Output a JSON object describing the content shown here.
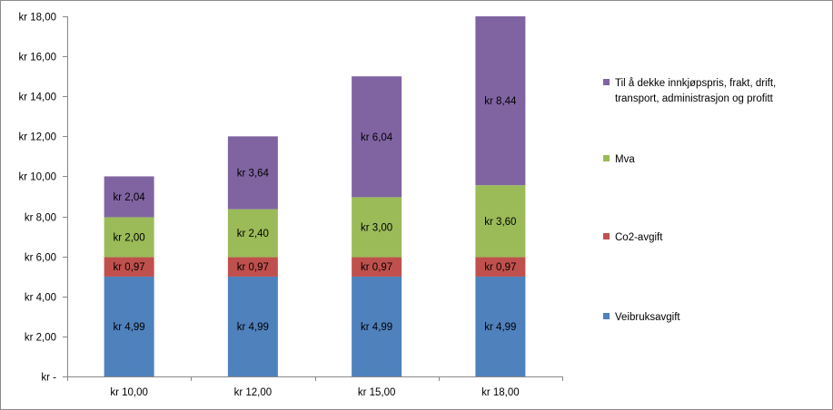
{
  "chart_data": {
    "type": "bar",
    "stacked": true,
    "categories": [
      "kr 10,00",
      "kr 12,00",
      "kr 15,00",
      "kr 18,00"
    ],
    "series": [
      {
        "name": "Veibruksavgift",
        "color": "#4F81BD",
        "values": [
          4.99,
          4.99,
          4.99,
          4.99
        ],
        "labels": [
          "kr 4,99",
          "kr 4,99",
          "kr 4,99",
          "kr 4,99"
        ]
      },
      {
        "name": "Co2-avgift",
        "color": "#C0504D",
        "values": [
          0.97,
          0.97,
          0.97,
          0.97
        ],
        "labels": [
          "kr 0,97",
          "kr 0,97",
          "kr 0,97",
          "kr 0,97"
        ]
      },
      {
        "name": "Mva",
        "color": "#9BBB59",
        "values": [
          2.0,
          2.4,
          3.0,
          3.6
        ],
        "labels": [
          "kr 2,00",
          "kr 2,40",
          "kr 3,00",
          "kr 3,60"
        ]
      },
      {
        "name": "Til å dekke innkjøpspris, frakt, drift, transport, administrasjon og profitt",
        "name_lines": [
          "Til å dekke innkjøpspris, frakt, drift,",
          "transport, administrasjon og profitt"
        ],
        "color": "#8064A2",
        "values": [
          2.04,
          3.64,
          6.04,
          8.44
        ],
        "labels": [
          "kr 2,04",
          "kr 3,64",
          "kr 6,04",
          "kr 8,44"
        ]
      }
    ],
    "ylim": [
      0,
      18
    ],
    "yticks": [
      0,
      2,
      4,
      6,
      8,
      10,
      12,
      14,
      16,
      18
    ],
    "ytick_labels": [
      "kr -",
      "kr 2,00",
      "kr 4,00",
      "kr 6,00",
      "kr 8,00",
      "kr 10,00",
      "kr 12,00",
      "kr 14,00",
      "kr 16,00",
      "kr 18,00"
    ],
    "grid": false,
    "legend_position": "right",
    "title": "",
    "xlabel": "",
    "ylabel": ""
  }
}
